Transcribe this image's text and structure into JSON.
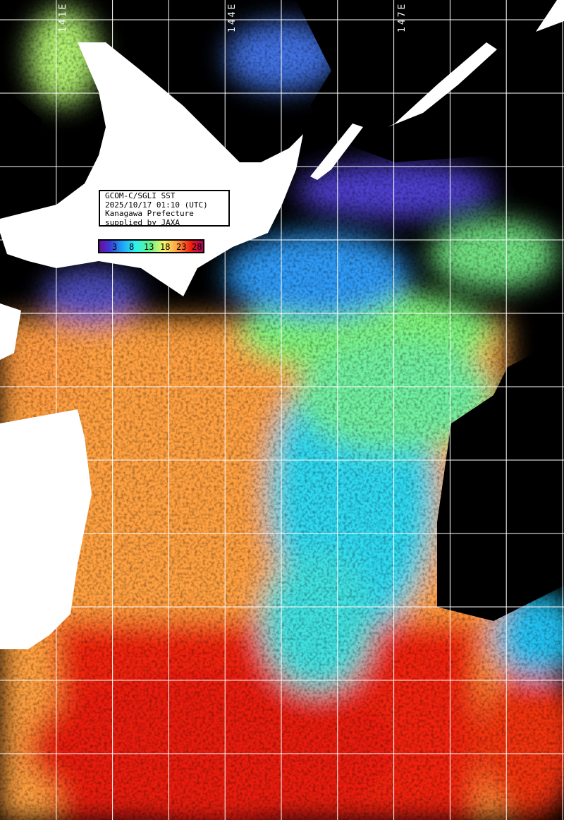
{
  "map": {
    "title": "GCOM-C/SGLI SST",
    "datetime": "2025/10/17 01:10 (UTC)",
    "region": "Kanagawa Prefecture",
    "credit": "supplied by JAXA",
    "longitude_labels": [
      "141E",
      "144E",
      "147E"
    ],
    "colorbar": {
      "unit_ticks": [
        "3",
        "8",
        "13",
        "18",
        "23",
        "28"
      ],
      "colors": [
        "#6a0d9a",
        "#3b38d8",
        "#1fa2f5",
        "#2ff0f0",
        "#5ff58a",
        "#f5f56a",
        "#ffa040",
        "#f02010",
        "#b00060"
      ]
    },
    "land_color": "#ffffff",
    "cloud_color": "#000000",
    "grid_color": "#ffffff"
  }
}
